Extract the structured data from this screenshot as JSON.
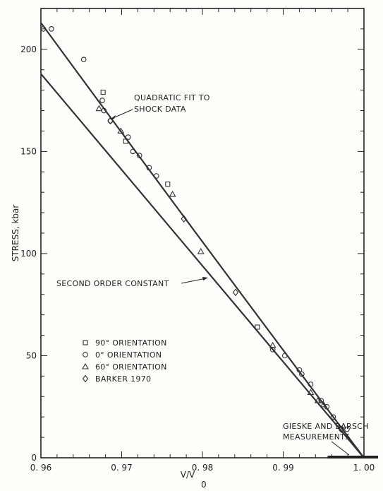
{
  "chart_data": {
    "type": "scatter",
    "xlabel": "V/V",
    "xlabel_sub": "0",
    "ylabel": "STRESS, kbar",
    "xlim": [
      0.96,
      1.0
    ],
    "ylim": [
      0,
      220
    ],
    "x_ticks": [
      0.96,
      0.97,
      0.98,
      0.99,
      1.0
    ],
    "x_tick_labels": [
      "0. 96",
      "0. 97",
      "0. 98",
      "0. 99",
      "1. 00"
    ],
    "y_ticks": [
      0,
      50,
      100,
      150,
      200
    ],
    "y_tick_labels": [
      "0",
      "50",
      "100",
      "150",
      "200"
    ],
    "grid": false,
    "legend_position": "lower-left",
    "series": [
      {
        "name": "90° ORIENTATION",
        "marker": "square",
        "points": [
          [
            0.9677,
            179
          ],
          [
            0.9705,
            155
          ],
          [
            0.9757,
            134
          ],
          [
            0.9868,
            64
          ]
        ]
      },
      {
        "name": "0° ORIENTATION",
        "marker": "circle",
        "points": [
          [
            0.9603,
            210
          ],
          [
            0.9613,
            210
          ],
          [
            0.9653,
            195
          ],
          [
            0.9676,
            175
          ],
          [
            0.9678,
            170
          ],
          [
            0.9686,
            165
          ],
          [
            0.9708,
            157
          ],
          [
            0.9714,
            150
          ],
          [
            0.9722,
            148
          ],
          [
            0.9734,
            142
          ],
          [
            0.9743,
            138
          ],
          [
            0.9887,
            53
          ],
          [
            0.9902,
            50
          ],
          [
            0.992,
            43
          ],
          [
            0.9923,
            41
          ],
          [
            0.9934,
            36
          ],
          [
            0.9947,
            28
          ],
          [
            0.9954,
            25
          ],
          [
            0.9962,
            20
          ],
          [
            0.9972,
            14
          ],
          [
            0.9979,
            14
          ]
        ]
      },
      {
        "name": "60° ORIENTATION",
        "marker": "triangle",
        "points": [
          [
            0.9672,
            171
          ],
          [
            0.9699,
            160
          ],
          [
            0.9763,
            129
          ],
          [
            0.9798,
            101
          ],
          [
            0.9887,
            55
          ],
          [
            0.9934,
            32
          ],
          [
            0.9943,
            28
          ],
          [
            0.995,
            26
          ]
        ]
      },
      {
        "name": "BARKER 1970",
        "marker": "diamond",
        "points": [
          [
            0.9686,
            165
          ],
          [
            0.9777,
            117
          ],
          [
            0.9841,
            81
          ],
          [
            0.9972,
            14
          ]
        ]
      }
    ],
    "lines": [
      {
        "name": "QUADRATIC FIT TO SHOCK DATA",
        "points": [
          [
            0.96,
            213
          ],
          [
            0.98,
            105
          ],
          [
            1.0,
            0
          ]
        ]
      },
      {
        "name": "SECOND ORDER CONSTANT",
        "points": [
          [
            0.96,
            188
          ],
          [
            1.0,
            0
          ]
        ]
      }
    ],
    "gieske_range": [
      0.9955,
      1.0
    ],
    "annotations": [
      {
        "name": "QUADRATIC FIT TO SHOCK DATA",
        "lines": [
          "QUADRATIC FIT TO",
          "SHOCK DATA"
        ]
      },
      {
        "name": "SECOND ORDER CONSTANT",
        "lines": [
          "SECOND ORDER CONSTANT"
        ]
      },
      {
        "name": "GIESKE AND BARSCH MEASUREMENTS",
        "lines": [
          "GIESKE AND BARSCH",
          "MEASUREMENTS"
        ]
      }
    ]
  }
}
